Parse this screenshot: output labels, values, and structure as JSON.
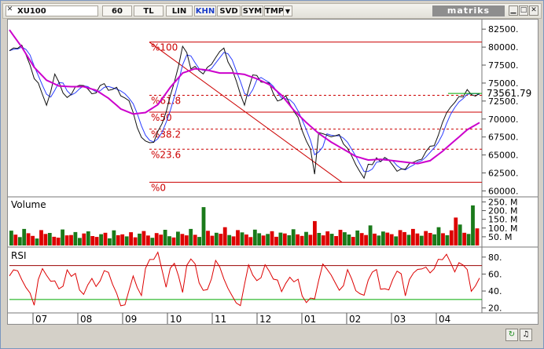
{
  "toolbar": {
    "symbol": "XU100",
    "period": "60",
    "currency": "TL",
    "scale": "LIN",
    "chart_type": "KHN",
    "svd": "SVD",
    "sym": "SYM",
    "tmp": "TMP",
    "dropdown_icon": "chevron-down-icon",
    "brand": "matriks"
  },
  "colors": {
    "price": "#111111",
    "ma": "#cc00cc",
    "blue": "#2a3cff",
    "fib": "#cc0000",
    "volume_up": "#1a7a1a",
    "volume_down": "#dd0000",
    "rsi": "#dd0000",
    "rsi_low": "#00aa00"
  },
  "chart_data": [
    {
      "type": "line",
      "x_labels": [
        "07",
        "08",
        "09",
        "10",
        "11",
        "12",
        "01",
        "02",
        "03",
        "04"
      ],
      "y_ticks": [
        "82500.",
        "80000.",
        "77500.",
        "75000.",
        "72500.",
        "70000.",
        "67500.",
        "65000.",
        "62500.",
        "60000."
      ],
      "ylim": [
        59500,
        83500
      ],
      "last_value_label": "73561.79",
      "last_value": 73561.79,
      "fib_levels": [
        {
          "label": "%100",
          "value": 80700
        },
        {
          "label": "%61.8",
          "value": 73300
        },
        {
          "label": "%50",
          "value": 70950
        },
        {
          "label": "%38.2",
          "value": 68600
        },
        {
          "label": "%23.6",
          "value": 65800
        },
        {
          "label": "%0",
          "value": 61200
        }
      ],
      "price_anchors": [
        [
          0,
          79500
        ],
        [
          3,
          80500
        ],
        [
          6,
          76000
        ],
        [
          9,
          72000
        ],
        [
          11,
          76000
        ],
        [
          14,
          73000
        ],
        [
          17,
          75000
        ],
        [
          20,
          73800
        ],
        [
          23,
          74500
        ],
        [
          26,
          74000
        ],
        [
          29,
          72500
        ],
        [
          31,
          69000
        ],
        [
          33,
          66500
        ],
        [
          35,
          67000
        ],
        [
          37,
          69500
        ],
        [
          39,
          73000
        ],
        [
          41,
          77500
        ],
        [
          42,
          80500
        ],
        [
          44,
          77200
        ],
        [
          47,
          76500
        ],
        [
          50,
          78300
        ],
        [
          52,
          80200
        ],
        [
          53,
          78200
        ],
        [
          55,
          75700
        ],
        [
          57,
          72000
        ],
        [
          59,
          76000
        ],
        [
          61,
          75300
        ],
        [
          63,
          75000
        ],
        [
          65,
          72200
        ],
        [
          67,
          73300
        ],
        [
          69,
          71300
        ],
        [
          71,
          68700
        ],
        [
          73,
          65600
        ],
        [
          74,
          62000
        ],
        [
          75,
          67700
        ],
        [
          78,
          67300
        ],
        [
          80,
          67800
        ],
        [
          82,
          66100
        ],
        [
          84,
          63900
        ],
        [
          86,
          61600
        ],
        [
          87,
          63500
        ],
        [
          89,
          64200
        ],
        [
          91,
          64800
        ],
        [
          93,
          63600
        ],
        [
          95,
          62600
        ],
        [
          97,
          63500
        ],
        [
          99,
          64300
        ],
        [
          101,
          65200
        ],
        [
          103,
          66500
        ],
        [
          105,
          69800
        ],
        [
          107,
          71500
        ],
        [
          109,
          72800
        ],
        [
          111,
          73800
        ],
        [
          113,
          73600
        ],
        [
          114,
          73561.79
        ]
      ],
      "ma_anchors": [
        [
          0,
          82400
        ],
        [
          3,
          80000
        ],
        [
          6,
          77200
        ],
        [
          9,
          75400
        ],
        [
          12,
          74600
        ],
        [
          15,
          74500
        ],
        [
          18,
          74500
        ],
        [
          21,
          74000
        ],
        [
          24,
          72900
        ],
        [
          27,
          71400
        ],
        [
          30,
          70700
        ],
        [
          33,
          70900
        ],
        [
          36,
          72000
        ],
        [
          39,
          74400
        ],
        [
          42,
          76400
        ],
        [
          45,
          77000
        ],
        [
          48,
          76800
        ],
        [
          51,
          76400
        ],
        [
          54,
          76400
        ],
        [
          57,
          76200
        ],
        [
          60,
          75600
        ],
        [
          63,
          74800
        ],
        [
          66,
          73300
        ],
        [
          69,
          71200
        ],
        [
          72,
          69500
        ],
        [
          75,
          68000
        ],
        [
          78,
          66800
        ],
        [
          81,
          65800
        ],
        [
          84,
          64800
        ],
        [
          87,
          64300
        ],
        [
          90,
          64400
        ],
        [
          93,
          64200
        ],
        [
          96,
          64000
        ],
        [
          99,
          63800
        ],
        [
          102,
          64200
        ],
        [
          105,
          65500
        ],
        [
          108,
          67000
        ],
        [
          111,
          68500
        ],
        [
          114,
          69500
        ]
      ]
    },
    {
      "type": "bar",
      "title": "Volume",
      "y_ticks": [
        "250. M",
        "200. M",
        "150. M",
        "100. M",
        "50. M"
      ],
      "ylim": [
        0,
        270
      ],
      "values": [
        85,
        62,
        48,
        95,
        70,
        55,
        40,
        88,
        66,
        72,
        50,
        45,
        92,
        58,
        60,
        77,
        43,
        69,
        81,
        54,
        49,
        65,
        73,
        41,
        87,
        59,
        64,
        52,
        76,
        47,
        68,
        83,
        57,
        44,
        71,
        62,
        90,
        53,
        46,
        79,
        66,
        58,
        95,
        61,
        49,
        220,
        84,
        56,
        73,
        67,
        105,
        60,
        52,
        88,
        75,
        63,
        48,
        91,
        70,
        57,
        66,
        82,
        50,
        74,
        69,
        59,
        93,
        64,
        55,
        78,
        61,
        140,
        72,
        58,
        81,
        67,
        54,
        90,
        76,
        63,
        49,
        86,
        71,
        60,
        115,
        68,
        57,
        80,
        74,
        65,
        52,
        88,
        77,
        61,
        95,
        69,
        56,
        83,
        72,
        64,
        105,
        70,
        59,
        87,
        160,
        120,
        73,
        66,
        230,
        98
      ],
      "colors_pattern": "alternating"
    },
    {
      "type": "line",
      "title": "RSI",
      "y_ticks": [
        "80.",
        "60.",
        "40.",
        "20."
      ],
      "ylim": [
        16,
        90
      ],
      "levels": [
        70,
        30
      ],
      "anchors": [
        [
          0,
          58
        ],
        [
          2,
          70
        ],
        [
          4,
          45
        ],
        [
          6,
          30
        ],
        [
          8,
          65
        ],
        [
          10,
          55
        ],
        [
          12,
          40
        ],
        [
          14,
          65
        ],
        [
          16,
          58
        ],
        [
          18,
          35
        ],
        [
          20,
          60
        ],
        [
          22,
          45
        ],
        [
          24,
          68
        ],
        [
          26,
          30
        ],
        [
          28,
          25
        ],
        [
          30,
          55
        ],
        [
          32,
          40
        ],
        [
          34,
          78
        ],
        [
          36,
          85
        ],
        [
          38,
          50
        ],
        [
          40,
          75
        ],
        [
          42,
          45
        ],
        [
          44,
          82
        ],
        [
          46,
          50
        ],
        [
          48,
          40
        ],
        [
          50,
          72
        ],
        [
          52,
          60
        ],
        [
          54,
          35
        ],
        [
          56,
          30
        ],
        [
          58,
          68
        ],
        [
          60,
          45
        ],
        [
          62,
          72
        ],
        [
          64,
          55
        ],
        [
          66,
          40
        ],
        [
          68,
          60
        ],
        [
          70,
          50
        ],
        [
          72,
          30
        ],
        [
          74,
          25
        ],
        [
          76,
          65
        ],
        [
          78,
          55
        ],
        [
          80,
          40
        ],
        [
          82,
          68
        ],
        [
          84,
          45
        ],
        [
          86,
          32
        ],
        [
          88,
          66
        ],
        [
          90,
          50
        ],
        [
          92,
          40
        ],
        [
          94,
          70
        ],
        [
          96,
          35
        ],
        [
          98,
          60
        ],
        [
          100,
          72
        ],
        [
          102,
          55
        ],
        [
          104,
          85
        ],
        [
          106,
          80
        ],
        [
          108,
          60
        ],
        [
          110,
          75
        ],
        [
          112,
          45
        ],
        [
          114,
          62
        ]
      ]
    }
  ]
}
